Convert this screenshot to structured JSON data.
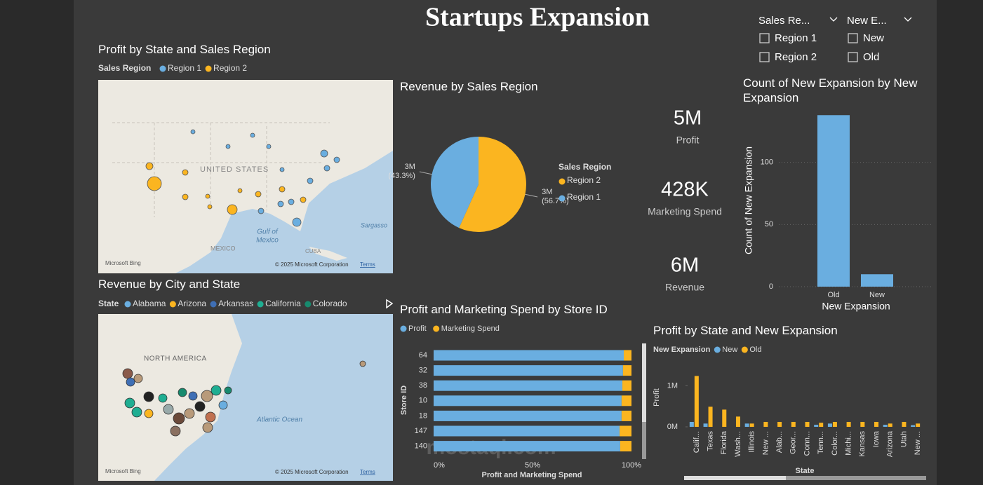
{
  "header": {
    "title": "Startups Expansion"
  },
  "slicers": [
    {
      "title": "Sales Re...",
      "options": [
        "Region 1",
        "Region 2"
      ]
    },
    {
      "title": "New E...",
      "options": [
        "New",
        "Old"
      ]
    }
  ],
  "maps": [
    {
      "title": "Profit by State and Sales Region",
      "legend_title": "Sales Region",
      "legend": [
        {
          "name": "Region 1",
          "color": "#6aaee0"
        },
        {
          "name": "Region 2",
          "color": "#fbb520"
        }
      ],
      "labels": [
        "UNITED STATES",
        "Gulf of",
        "Mexico",
        "MEXICO",
        "Sargasso",
        "CUBA"
      ],
      "credit": "Microsoft Bing",
      "copyright": "© 2025 Microsoft Corporation",
      "terms": "Terms"
    },
    {
      "title": "Revenue by City and State",
      "legend_title": "State",
      "legend": [
        {
          "name": "Alabama",
          "color": "#6aaee0"
        },
        {
          "name": "Arizona",
          "color": "#fbb520"
        },
        {
          "name": "Arkansas",
          "color": "#3f6fb5"
        },
        {
          "name": "California",
          "color": "#1fae92"
        },
        {
          "name": "Colorado",
          "color": "#178a6e"
        }
      ],
      "labels": [
        "NORTH AMERICA",
        "Atlantic Ocean"
      ],
      "credit": "Microsoft Bing",
      "copyright": "© 2025 Microsoft Corporation",
      "terms": "Terms"
    }
  ],
  "kpis": [
    {
      "value": "5M",
      "label": "Profit"
    },
    {
      "value": "428K",
      "label": "Marketing Spend"
    },
    {
      "value": "6M",
      "label": "Revenue"
    }
  ],
  "watermark": "mostaql.com",
  "chart_data": [
    {
      "type": "pie",
      "title": "Revenue by Sales Region",
      "legend_title": "Sales Region",
      "categories": [
        "Region 2",
        "Region 1"
      ],
      "values": [
        56.7,
        43.3
      ],
      "colors": [
        "#fbb520",
        "#6aaee0"
      ],
      "value_labels": [
        "(56.7%)",
        "(43.3%)"
      ],
      "amount_labels": [
        "3M",
        "3M"
      ]
    },
    {
      "type": "bar",
      "title": "Count of New Expansion by New Expansion",
      "x_label": "New Expansion",
      "y_label": "Count of New Expansion",
      "categories": [
        "Old",
        "New"
      ],
      "values": [
        138,
        10
      ],
      "color": "#6aaee0",
      "ylim": [
        0,
        150
      ],
      "yticks": [
        0,
        50,
        100
      ],
      "grid": true
    },
    {
      "type": "stacked_hbar",
      "title": "Profit and Marketing Spend by Store ID",
      "x_label": "Profit and Marketing Spend",
      "y_label": "Store ID",
      "categories": [
        "64",
        "32",
        "38",
        "10",
        "18",
        "147",
        "140"
      ],
      "series": [
        {
          "name": "Profit",
          "color": "#6aaee0",
          "values": [
            96.1,
            95.7,
            95.4,
            95.0,
            95.0,
            94.0,
            94.3
          ]
        },
        {
          "name": "Marketing Spend",
          "color": "#fbb520",
          "values": [
            3.9,
            4.3,
            4.6,
            5.0,
            5.0,
            6.0,
            5.7
          ]
        }
      ],
      "xlim": [
        0,
        100
      ],
      "xticks": [
        {
          "value": 0,
          "label": "0%"
        },
        {
          "value": 50,
          "label": "50%"
        },
        {
          "value": 100,
          "label": "100%"
        }
      ]
    },
    {
      "type": "grouped_bar",
      "title": "Profit by State and New Expansion",
      "legend_title": "New Expansion",
      "x_label": "State",
      "y_label": "Profit",
      "categories": [
        "Calif...",
        "Texas",
        "Florida",
        "Wash...",
        "Illinois",
        "New ...",
        "Alab...",
        "Geor...",
        "Conn...",
        "Tenn...",
        "Color...",
        "Michi...",
        "Kansas",
        "Iowa",
        "Arizona",
        "Utah",
        "New ..."
      ],
      "series": [
        {
          "name": "New",
          "color": "#6aaee0",
          "values": [
            120000,
            80000,
            null,
            null,
            80000,
            null,
            null,
            null,
            null,
            50000,
            80000,
            null,
            null,
            null,
            50000,
            null,
            40000
          ]
        },
        {
          "name": "Old",
          "color": "#fbb520",
          "values": [
            1240000,
            490000,
            420000,
            250000,
            80000,
            120000,
            120000,
            120000,
            120000,
            100000,
            120000,
            120000,
            120000,
            120000,
            80000,
            120000,
            80000
          ]
        }
      ],
      "ylim": [
        0,
        1350000
      ],
      "yticks": [
        {
          "value": 0,
          "label": "0M"
        },
        {
          "value": 1000000,
          "label": "1M"
        }
      ]
    }
  ]
}
